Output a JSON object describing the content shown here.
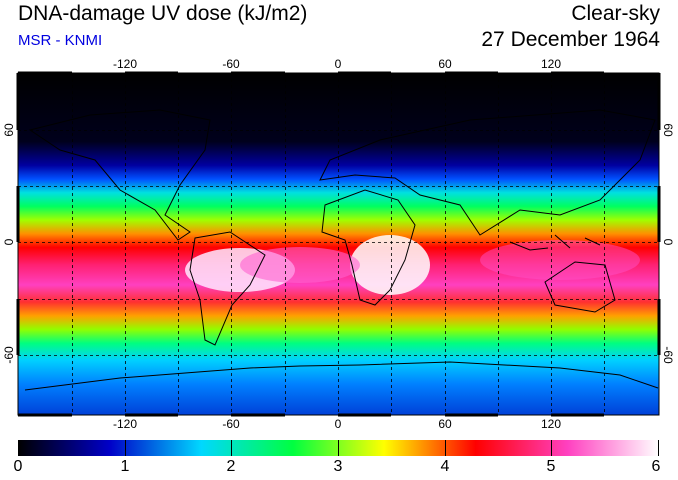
{
  "header": {
    "title": "DNA-damage UV dose (kJ/m2)",
    "subtitle": "MSR - KNMI",
    "condition": "Clear-sky",
    "date": "27 December 1964"
  },
  "map": {
    "lon_ticks": [
      "-120",
      "-60",
      "0",
      "60",
      "120"
    ],
    "lat_ticks": [
      "60",
      "0",
      "-60"
    ]
  },
  "colorbar": {
    "labels": [
      "0",
      "1",
      "2",
      "3",
      "4",
      "5",
      "6"
    ],
    "min": 0,
    "max": 6,
    "colors": [
      "#000000",
      "#0000c8",
      "#00d8ff",
      "#00ff40",
      "#ffff00",
      "#ff0000",
      "#ff40c0",
      "#ffffff"
    ]
  }
}
